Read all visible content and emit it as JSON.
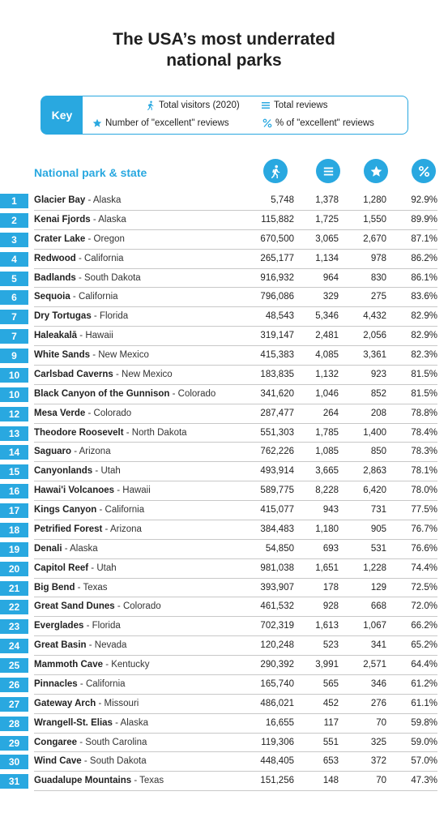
{
  "title_line1": "The USA’s most underrated",
  "title_line2": "national parks",
  "key": {
    "label": "Key",
    "visitors": "Total visitors (2020)",
    "reviews": "Total reviews",
    "excellent": "Number of \"excellent\" reviews",
    "pct": "% of \"excellent\" reviews"
  },
  "column_header": "National park & state",
  "icons": {
    "visitors": "hiker-icon",
    "reviews": "list-icon",
    "excellent": "star-icon",
    "pct": "percent-icon"
  },
  "colors": {
    "accent": "#29a8e0",
    "divider": "#c8c8c8",
    "text": "#222222"
  },
  "chart_data": {
    "type": "table",
    "title": "The USA’s most underrated national parks",
    "columns": [
      "Rank",
      "National park & state",
      "Total visitors (2020)",
      "Total reviews",
      "Number of \"excellent\" reviews",
      "% of \"excellent\" reviews"
    ],
    "rows": [
      {
        "rank": "1",
        "park": "Glacier Bay",
        "state": "Alaska",
        "visitors": "5,748",
        "reviews": "1,378",
        "excellent": "1,280",
        "pct": "92.9%"
      },
      {
        "rank": "2",
        "park": "Kenai Fjords",
        "state": "Alaska",
        "visitors": "115,882",
        "reviews": "1,725",
        "excellent": "1,550",
        "pct": "89.9%"
      },
      {
        "rank": "3",
        "park": "Crater Lake",
        "state": "Oregon",
        "visitors": "670,500",
        "reviews": "3,065",
        "excellent": "2,670",
        "pct": "87.1%"
      },
      {
        "rank": "4",
        "park": "Redwood",
        "state": "California",
        "visitors": "265,177",
        "reviews": "1,134",
        "excellent": "978",
        "pct": "86.2%"
      },
      {
        "rank": "5",
        "park": "Badlands",
        "state": "South Dakota",
        "visitors": "916,932",
        "reviews": "964",
        "excellent": "830",
        "pct": "86.1%"
      },
      {
        "rank": "6",
        "park": "Sequoia",
        "state": "California",
        "visitors": "796,086",
        "reviews": "329",
        "excellent": "275",
        "pct": "83.6%"
      },
      {
        "rank": "7",
        "park": "Dry Tortugas",
        "state": "Florida",
        "visitors": "48,543",
        "reviews": "5,346",
        "excellent": "4,432",
        "pct": "82.9%"
      },
      {
        "rank": "7",
        "park": "Haleakalā",
        "state": "Hawaii",
        "visitors": "319,147",
        "reviews": "2,481",
        "excellent": "2,056",
        "pct": "82.9%"
      },
      {
        "rank": "9",
        "park": "White Sands",
        "state": "New Mexico",
        "visitors": "415,383",
        "reviews": "4,085",
        "excellent": "3,361",
        "pct": "82.3%"
      },
      {
        "rank": "10",
        "park": "Carlsbad Caverns",
        "state": "New Mexico",
        "visitors": "183,835",
        "reviews": "1,132",
        "excellent": "923",
        "pct": "81.5%"
      },
      {
        "rank": "10",
        "park": "Black Canyon of the Gunnison",
        "state": "Colorado",
        "visitors": "341,620",
        "reviews": "1,046",
        "excellent": "852",
        "pct": "81.5%"
      },
      {
        "rank": "12",
        "park": "Mesa Verde",
        "state": "Colorado",
        "visitors": "287,477",
        "reviews": "264",
        "excellent": "208",
        "pct": "78.8%"
      },
      {
        "rank": "13",
        "park": "Theodore Roosevelt",
        "state": "North Dakota",
        "visitors": "551,303",
        "reviews": "1,785",
        "excellent": "1,400",
        "pct": "78.4%"
      },
      {
        "rank": "14",
        "park": "Saguaro",
        "state": "Arizona",
        "visitors": "762,226",
        "reviews": "1,085",
        "excellent": "850",
        "pct": "78.3%"
      },
      {
        "rank": "15",
        "park": "Canyonlands",
        "state": "Utah",
        "visitors": "493,914",
        "reviews": "3,665",
        "excellent": "2,863",
        "pct": "78.1%"
      },
      {
        "rank": "16",
        "park": "Hawai'i Volcanoes",
        "state": "Hawaii",
        "visitors": "589,775",
        "reviews": "8,228",
        "excellent": "6,420",
        "pct": "78.0%"
      },
      {
        "rank": "17",
        "park": "Kings Canyon",
        "state": "California",
        "visitors": "415,077",
        "reviews": "943",
        "excellent": "731",
        "pct": "77.5%"
      },
      {
        "rank": "18",
        "park": "Petrified Forest",
        "state": "Arizona",
        "visitors": "384,483",
        "reviews": "1,180",
        "excellent": "905",
        "pct": "76.7%"
      },
      {
        "rank": "19",
        "park": "Denali",
        "state": "Alaska",
        "visitors": "54,850",
        "reviews": "693",
        "excellent": "531",
        "pct": "76.6%"
      },
      {
        "rank": "20",
        "park": "Capitol Reef",
        "state": "Utah",
        "visitors": "981,038",
        "reviews": "1,651",
        "excellent": "1,228",
        "pct": "74.4%"
      },
      {
        "rank": "21",
        "park": "Big Bend",
        "state": "Texas",
        "visitors": "393,907",
        "reviews": "178",
        "excellent": "129",
        "pct": "72.5%"
      },
      {
        "rank": "22",
        "park": "Great Sand Dunes",
        "state": "Colorado",
        "visitors": "461,532",
        "reviews": "928",
        "excellent": "668",
        "pct": "72.0%"
      },
      {
        "rank": "23",
        "park": "Everglades",
        "state": "Florida",
        "visitors": "702,319",
        "reviews": "1,613",
        "excellent": "1,067",
        "pct": "66.2%"
      },
      {
        "rank": "24",
        "park": "Great Basin",
        "state": "Nevada",
        "visitors": "120,248",
        "reviews": "523",
        "excellent": "341",
        "pct": "65.2%"
      },
      {
        "rank": "25",
        "park": "Mammoth Cave",
        "state": "Kentucky",
        "visitors": "290,392",
        "reviews": "3,991",
        "excellent": "2,571",
        "pct": "64.4%"
      },
      {
        "rank": "26",
        "park": "Pinnacles",
        "state": "California",
        "visitors": "165,740",
        "reviews": "565",
        "excellent": "346",
        "pct": "61.2%"
      },
      {
        "rank": "27",
        "park": "Gateway Arch",
        "state": "Missouri",
        "visitors": "486,021",
        "reviews": "452",
        "excellent": "276",
        "pct": "61.1%"
      },
      {
        "rank": "28",
        "park": "Wrangell-St. Elias",
        "state": "Alaska",
        "visitors": "16,655",
        "reviews": "117",
        "excellent": "70",
        "pct": "59.8%"
      },
      {
        "rank": "29",
        "park": "Congaree",
        "state": "South Carolina",
        "visitors": "119,306",
        "reviews": "551",
        "excellent": "325",
        "pct": "59.0%"
      },
      {
        "rank": "30",
        "park": "Wind Cave",
        "state": "South Dakota",
        "visitors": "448,405",
        "reviews": "653",
        "excellent": "372",
        "pct": "57.0%"
      },
      {
        "rank": "31",
        "park": "Guadalupe Mountains",
        "state": "Texas",
        "visitors": "151,256",
        "reviews": "148",
        "excellent": "70",
        "pct": "47.3%"
      }
    ]
  }
}
